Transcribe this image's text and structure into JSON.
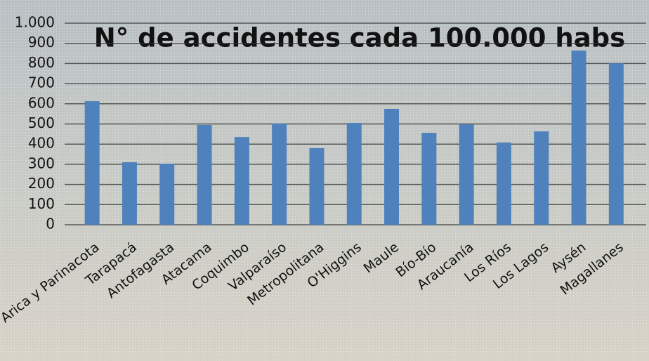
{
  "chart_data": {
    "type": "bar",
    "title": "N° de accidentes cada 100.000 habs",
    "categories": [
      "Arica y Parinacota",
      "Tarapacá",
      "Antofagasta",
      "Atacama",
      "Coquimbo",
      "Valparaíso",
      "Metropolitana",
      "O'Higgins",
      "Maule",
      "Bío-Bío",
      "Araucanía",
      "Los Ríos",
      "Los Lagos",
      "Aysén",
      "Magallanes"
    ],
    "values": [
      613,
      310,
      303,
      495,
      435,
      502,
      380,
      505,
      575,
      456,
      498,
      408,
      463,
      864,
      801
    ],
    "color": "#4f81bd",
    "ylim": [
      0,
      1000
    ],
    "yticks": [
      0,
      100,
      200,
      300,
      400,
      500,
      600,
      700,
      800,
      900,
      {
        "value": 1000,
        "label": "1.000"
      }
    ],
    "grid": true
  }
}
